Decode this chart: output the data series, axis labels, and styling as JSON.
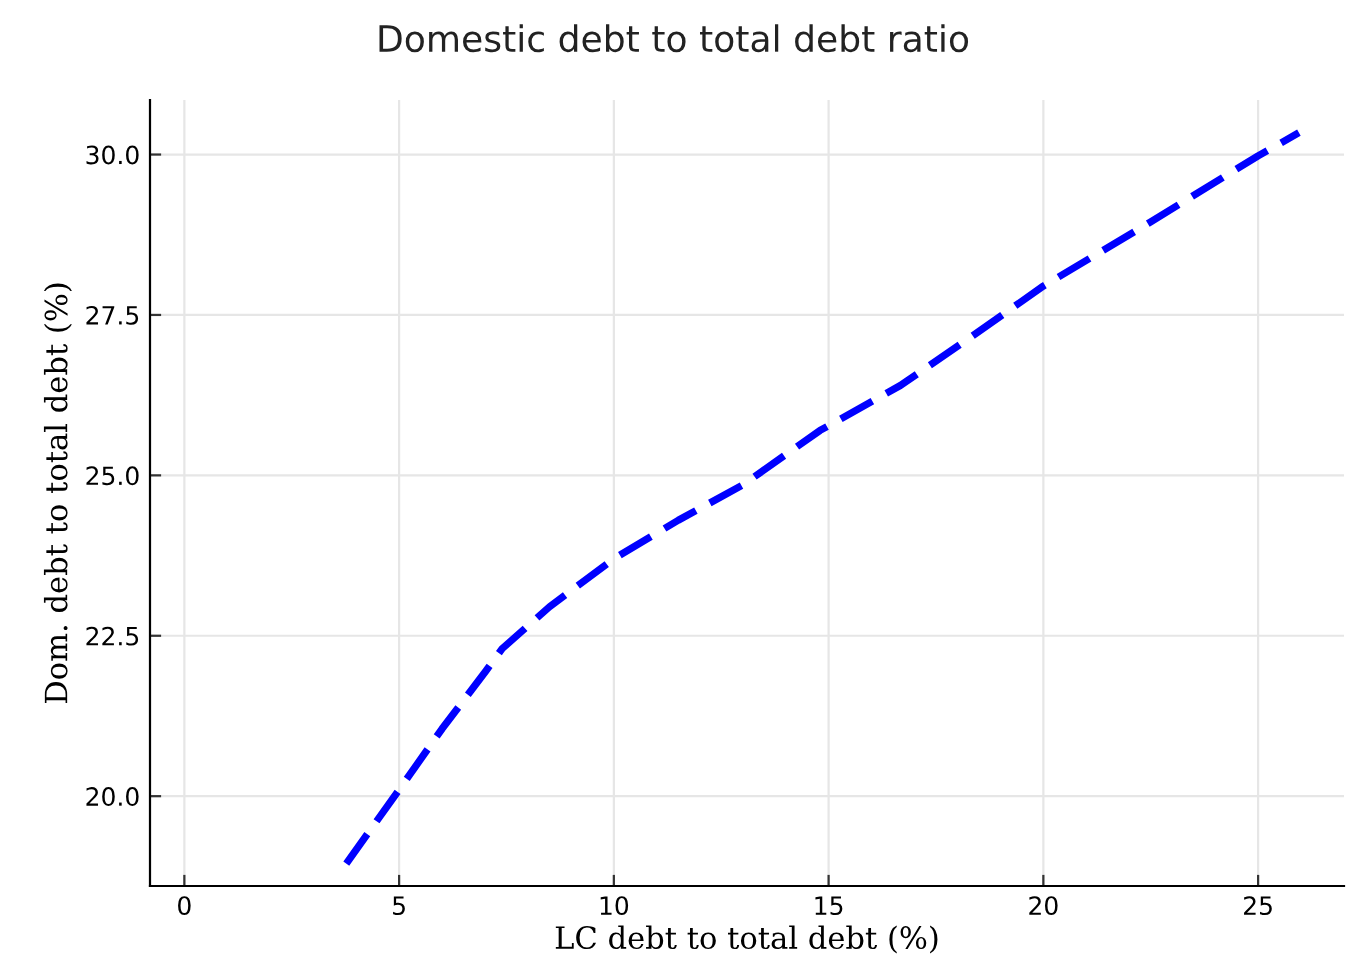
{
  "chart_data": {
    "type": "line",
    "title": "Domestic debt to total debt ratio",
    "xlabel": "LC debt to total debt (%)",
    "ylabel": "Dom. debt to total debt (%)",
    "x": [
      3.77,
      5.0,
      6.0,
      7.02,
      7.4,
      8.5,
      10.0,
      11.5,
      13.0,
      14.8,
      16.67,
      18.3,
      20.0,
      22.5,
      25.0,
      25.95
    ],
    "series": [
      {
        "color": "#0000ff",
        "values": [
          18.95,
          20.1,
          21.05,
          21.95,
          22.3,
          22.95,
          23.7,
          24.3,
          24.85,
          25.7,
          26.4,
          27.15,
          27.95,
          28.95,
          29.98,
          30.34
        ]
      }
    ],
    "xlim": [
      -0.8,
      27.0
    ],
    "ylim": [
      18.6,
      30.85
    ],
    "xticks": [
      0,
      5,
      10,
      15,
      20,
      25
    ],
    "yticks": [
      {
        "value": 20,
        "label": "20.0"
      },
      {
        "value": 22.5,
        "label": "22.5"
      },
      {
        "value": 25,
        "label": "25.0"
      },
      {
        "value": 27.5,
        "label": "27.5"
      },
      {
        "value": 30,
        "label": "30.0"
      }
    ],
    "grid": true,
    "line_style": "dashed"
  }
}
